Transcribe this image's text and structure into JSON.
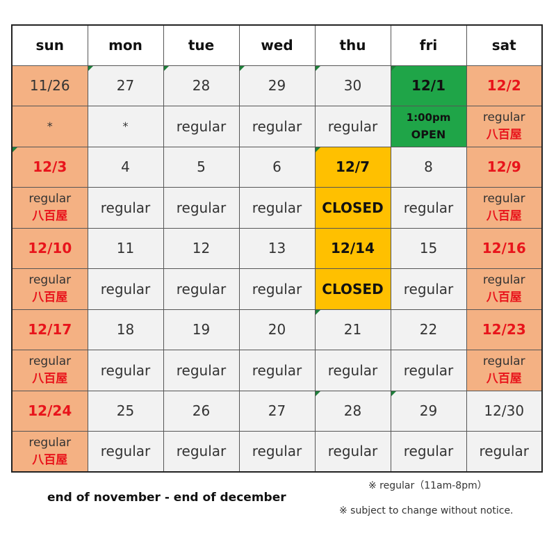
{
  "days": [
    "sun",
    "mon",
    "tue",
    "wed",
    "thu",
    "fri",
    "sat"
  ],
  "weeks": [
    {
      "dates": [
        "11/26",
        "27",
        "28",
        "29",
        "30",
        "12/1",
        "12/2"
      ],
      "status": {
        "sun": "*",
        "mon": "*",
        "tue": "regular",
        "wed": "regular",
        "thu": "regular",
        "fri": [
          "1:00pm",
          "OPEN"
        ],
        "sat": [
          "regular",
          "八百屋"
        ]
      }
    },
    {
      "dates": [
        "12/3",
        "4",
        "5",
        "6",
        "12/7",
        "8",
        "12/9"
      ],
      "status": {
        "sun": [
          "regular",
          "八百屋"
        ],
        "mon": "regular",
        "tue": "regular",
        "wed": "regular",
        "thu": "CLOSED",
        "fri": "regular",
        "sat": [
          "regular",
          "八百屋"
        ]
      }
    },
    {
      "dates": [
        "12/10",
        "11",
        "12",
        "13",
        "12/14",
        "15",
        "12/16"
      ],
      "status": {
        "sun": [
          "regular",
          "八百屋"
        ],
        "mon": "regular",
        "tue": "regular",
        "wed": "regular",
        "thu": "CLOSED",
        "fri": "regular",
        "sat": [
          "regular",
          "八百屋"
        ]
      }
    },
    {
      "dates": [
        "12/17",
        "18",
        "19",
        "20",
        "21",
        "22",
        "12/23"
      ],
      "status": {
        "sun": [
          "regular",
          "八百屋"
        ],
        "mon": "regular",
        "tue": "regular",
        "wed": "regular",
        "thu": "regular",
        "fri": "regular",
        "sat": [
          "regular",
          "八百屋"
        ]
      }
    },
    {
      "dates": [
        "12/24",
        "25",
        "26",
        "27",
        "28",
        "29",
        "12/30"
      ],
      "status": {
        "sun": [
          "regular",
          "八百屋"
        ],
        "mon": "regular",
        "tue": "regular",
        "wed": "regular",
        "thu": "regular",
        "fri": "regular",
        "sat": "regular"
      }
    }
  ],
  "caption": "end of november - end of december",
  "notes": {
    "regular": "※ regular（11am-8pm）",
    "change": "※ subject to change without notice."
  },
  "colors": {
    "weekend": "#f4b183",
    "open": "#1fa548",
    "closed": "#ffc000",
    "highlight_text": "#e8141b",
    "cell": "#f2f2f2"
  }
}
